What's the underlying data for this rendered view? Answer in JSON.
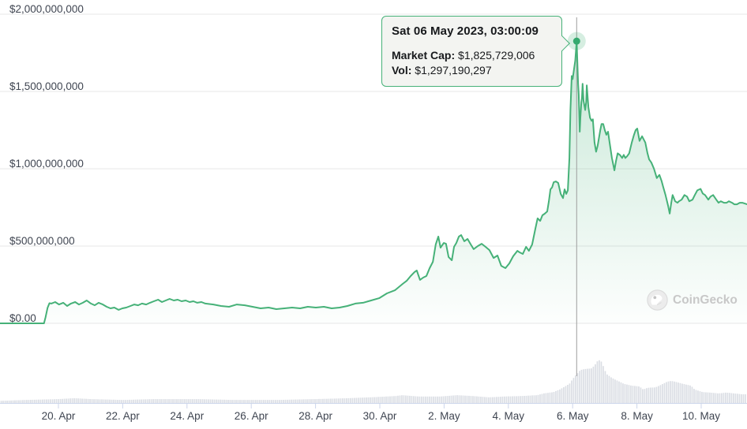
{
  "tooltip": {
    "title": "Sat 06 May 2023, 03:00:09",
    "market_cap_label": "Market Cap:",
    "market_cap_value": "$1,825,729,006",
    "vol_label": "Vol:",
    "vol_value": "$1,297,190,297"
  },
  "watermark": {
    "label": "CoinGecko",
    "icon": "gecko-logo"
  },
  "colors": {
    "accent_green": "#46b178",
    "marker_green": "#35a96e",
    "halo": "rgba(70,177,120,0.22)",
    "fill_top": "rgba(70,177,120,0.30)",
    "fill_bottom": "rgba(70,177,120,0.01)",
    "gridline": "#e7e7e7",
    "axis_line": "#ccd6eb",
    "tick": "#ccd6eb",
    "volume_bar": "#dbdee4",
    "crosshair": "#9e9e9e",
    "axis_label": "#3f4551",
    "tooltip_bg": "#f3f4f1"
  },
  "chart_data": {
    "type": "area",
    "title": "",
    "xlabel": "",
    "ylabel": "",
    "legend": "none",
    "grid": "horizontal",
    "ylim": [
      0,
      2000000000
    ],
    "y_ticks": [
      {
        "label": "$2,000,000,000",
        "value": 2000000000
      },
      {
        "label": "$1,500,000,000",
        "value": 1500000000
      },
      {
        "label": "$1,000,000,000",
        "value": 1000000000
      },
      {
        "label": "$500,000,000",
        "value": 500000000
      },
      {
        "label": "$0.00",
        "value": 0
      }
    ],
    "x_ticks": [
      {
        "label": "20. Apr",
        "t": 0
      },
      {
        "label": "22. Apr",
        "t": 2
      },
      {
        "label": "24. Apr",
        "t": 4
      },
      {
        "label": "26. Apr",
        "t": 6
      },
      {
        "label": "28. Apr",
        "t": 8
      },
      {
        "label": "30. Apr",
        "t": 10
      },
      {
        "label": "2. May",
        "t": 12
      },
      {
        "label": "4. May",
        "t": 14
      },
      {
        "label": "6. May",
        "t": 16
      },
      {
        "label": "8. May",
        "t": 18
      },
      {
        "label": "10. May",
        "t": 20
      }
    ],
    "x_unit": "days since 20 Apr 2023 00:00",
    "highlight": {
      "t": 16.125,
      "value_billion": 1.8257,
      "date": "Sat 06 May 2023, 03:00:09"
    },
    "series": [
      {
        "name": "Market Cap",
        "unit": "USD billions",
        "points": [
          [
            -1.82,
            0.0
          ],
          [
            -1.2,
            0.0
          ],
          [
            -0.6,
            0.0
          ],
          [
            -0.45,
            0.0
          ],
          [
            -0.4,
            0.04
          ],
          [
            -0.34,
            0.1
          ],
          [
            -0.28,
            0.13
          ],
          [
            -0.22,
            0.128
          ],
          [
            -0.1,
            0.138
          ],
          [
            0.02,
            0.122
          ],
          [
            0.15,
            0.133
          ],
          [
            0.27,
            0.112
          ],
          [
            0.39,
            0.128
          ],
          [
            0.52,
            0.138
          ],
          [
            0.64,
            0.122
          ],
          [
            0.76,
            0.133
          ],
          [
            0.88,
            0.148
          ],
          [
            1.01,
            0.128
          ],
          [
            1.13,
            0.117
          ],
          [
            1.25,
            0.133
          ],
          [
            1.38,
            0.122
          ],
          [
            1.5,
            0.107
          ],
          [
            1.62,
            0.097
          ],
          [
            1.74,
            0.102
          ],
          [
            1.87,
            0.087
          ],
          [
            1.99,
            0.097
          ],
          [
            2.11,
            0.102
          ],
          [
            2.24,
            0.112
          ],
          [
            2.36,
            0.122
          ],
          [
            2.48,
            0.117
          ],
          [
            2.6,
            0.128
          ],
          [
            2.73,
            0.122
          ],
          [
            2.85,
            0.133
          ],
          [
            2.97,
            0.143
          ],
          [
            3.1,
            0.153
          ],
          [
            3.22,
            0.138
          ],
          [
            3.34,
            0.148
          ],
          [
            3.46,
            0.158
          ],
          [
            3.59,
            0.148
          ],
          [
            3.71,
            0.153
          ],
          [
            3.83,
            0.143
          ],
          [
            3.96,
            0.148
          ],
          [
            4.08,
            0.138
          ],
          [
            4.2,
            0.143
          ],
          [
            4.32,
            0.133
          ],
          [
            4.45,
            0.138
          ],
          [
            4.57,
            0.128
          ],
          [
            4.82,
            0.122
          ],
          [
            5.06,
            0.112
          ],
          [
            5.31,
            0.107
          ],
          [
            5.55,
            0.122
          ],
          [
            5.8,
            0.117
          ],
          [
            6.04,
            0.107
          ],
          [
            6.29,
            0.097
          ],
          [
            6.54,
            0.102
          ],
          [
            6.78,
            0.092
          ],
          [
            7.03,
            0.097
          ],
          [
            7.27,
            0.102
          ],
          [
            7.52,
            0.097
          ],
          [
            7.76,
            0.107
          ],
          [
            8.01,
            0.102
          ],
          [
            8.26,
            0.107
          ],
          [
            8.5,
            0.097
          ],
          [
            8.75,
            0.102
          ],
          [
            8.99,
            0.112
          ],
          [
            9.24,
            0.128
          ],
          [
            9.48,
            0.133
          ],
          [
            9.73,
            0.148
          ],
          [
            9.98,
            0.163
          ],
          [
            10.22,
            0.194
          ],
          [
            10.47,
            0.214
          ],
          [
            10.71,
            0.255
          ],
          [
            10.84,
            0.276
          ],
          [
            10.96,
            0.306
          ],
          [
            11.08,
            0.332
          ],
          [
            11.15,
            0.342
          ],
          [
            11.25,
            0.281
          ],
          [
            11.35,
            0.296
          ],
          [
            11.45,
            0.306
          ],
          [
            11.55,
            0.357
          ],
          [
            11.65,
            0.398
          ],
          [
            11.74,
            0.51
          ],
          [
            11.82,
            0.561
          ],
          [
            11.89,
            0.49
          ],
          [
            11.99,
            0.52
          ],
          [
            12.06,
            0.515
          ],
          [
            12.14,
            0.429
          ],
          [
            12.24,
            0.408
          ],
          [
            12.31,
            0.495
          ],
          [
            12.38,
            0.52
          ],
          [
            12.46,
            0.561
          ],
          [
            12.53,
            0.571
          ],
          [
            12.63,
            0.531
          ],
          [
            12.73,
            0.546
          ],
          [
            12.83,
            0.51
          ],
          [
            12.92,
            0.48
          ],
          [
            13.05,
            0.5
          ],
          [
            13.17,
            0.515
          ],
          [
            13.29,
            0.495
          ],
          [
            13.41,
            0.474
          ],
          [
            13.54,
            0.423
          ],
          [
            13.66,
            0.439
          ],
          [
            13.78,
            0.372
          ],
          [
            13.91,
            0.357
          ],
          [
            14.03,
            0.388
          ],
          [
            14.15,
            0.434
          ],
          [
            14.28,
            0.469
          ],
          [
            14.35,
            0.459
          ],
          [
            14.45,
            0.449
          ],
          [
            14.55,
            0.495
          ],
          [
            14.64,
            0.469
          ],
          [
            14.74,
            0.51
          ],
          [
            14.84,
            0.612
          ],
          [
            14.91,
            0.679
          ],
          [
            14.99,
            0.663
          ],
          [
            15.06,
            0.699
          ],
          [
            15.13,
            0.709
          ],
          [
            15.21,
            0.724
          ],
          [
            15.26,
            0.79
          ],
          [
            15.31,
            0.867
          ],
          [
            15.36,
            0.88
          ],
          [
            15.41,
            0.913
          ],
          [
            15.48,
            0.918
          ],
          [
            15.55,
            0.908
          ],
          [
            15.63,
            0.837
          ],
          [
            15.7,
            0.81
          ],
          [
            15.75,
            0.867
          ],
          [
            15.8,
            0.837
          ],
          [
            15.85,
            0.86
          ],
          [
            15.9,
            1.07
          ],
          [
            15.93,
            1.38
          ],
          [
            15.97,
            1.6
          ],
          [
            16.0,
            1.58
          ],
          [
            16.04,
            1.64
          ],
          [
            16.08,
            1.7
          ],
          [
            16.125,
            1.826
          ],
          [
            16.17,
            1.55
          ],
          [
            16.19,
            1.48
          ],
          [
            16.22,
            1.24
          ],
          [
            16.24,
            1.33
          ],
          [
            16.27,
            1.43
          ],
          [
            16.29,
            1.46
          ],
          [
            16.31,
            1.55
          ],
          [
            16.34,
            1.44
          ],
          [
            16.39,
            1.38
          ],
          [
            16.42,
            1.43
          ],
          [
            16.44,
            1.54
          ],
          [
            16.49,
            1.4
          ],
          [
            16.54,
            1.33
          ],
          [
            16.59,
            1.31
          ],
          [
            16.63,
            1.32
          ],
          [
            16.68,
            1.17
          ],
          [
            16.73,
            1.11
          ],
          [
            16.78,
            1.15
          ],
          [
            16.81,
            1.19
          ],
          [
            16.86,
            1.25
          ],
          [
            16.9,
            1.29
          ],
          [
            16.95,
            1.29
          ],
          [
            17.0,
            1.25
          ],
          [
            17.05,
            1.22
          ],
          [
            17.1,
            1.24
          ],
          [
            17.15,
            1.17
          ],
          [
            17.22,
            1.07
          ],
          [
            17.3,
            0.99
          ],
          [
            17.35,
            1.05
          ],
          [
            17.4,
            1.1
          ],
          [
            17.47,
            1.09
          ],
          [
            17.54,
            1.07
          ],
          [
            17.59,
            1.09
          ],
          [
            17.64,
            1.07
          ],
          [
            17.69,
            1.08
          ],
          [
            17.76,
            1.1
          ],
          [
            17.84,
            1.17
          ],
          [
            17.91,
            1.22
          ],
          [
            17.96,
            1.25
          ],
          [
            18.01,
            1.26
          ],
          [
            18.08,
            1.18
          ],
          [
            18.16,
            1.21
          ],
          [
            18.26,
            1.17
          ],
          [
            18.33,
            1.1
          ],
          [
            18.38,
            1.06
          ],
          [
            18.45,
            1.04
          ],
          [
            18.53,
            1.0
          ],
          [
            18.62,
            0.94
          ],
          [
            18.7,
            0.96
          ],
          [
            18.77,
            0.92
          ],
          [
            18.82,
            0.88
          ],
          [
            18.89,
            0.83
          ],
          [
            18.97,
            0.76
          ],
          [
            19.02,
            0.71
          ],
          [
            19.07,
            0.78
          ],
          [
            19.11,
            0.83
          ],
          [
            19.19,
            0.79
          ],
          [
            19.26,
            0.78
          ],
          [
            19.31,
            0.79
          ],
          [
            19.39,
            0.8
          ],
          [
            19.48,
            0.83
          ],
          [
            19.56,
            0.82
          ],
          [
            19.63,
            0.79
          ],
          [
            19.73,
            0.8
          ],
          [
            19.8,
            0.83
          ],
          [
            19.88,
            0.86
          ],
          [
            19.98,
            0.87
          ],
          [
            20.05,
            0.84
          ],
          [
            20.12,
            0.83
          ],
          [
            20.22,
            0.8
          ],
          [
            20.29,
            0.82
          ],
          [
            20.37,
            0.83
          ],
          [
            20.47,
            0.8
          ],
          [
            20.54,
            0.78
          ],
          [
            20.61,
            0.79
          ],
          [
            20.71,
            0.78
          ],
          [
            20.79,
            0.78
          ],
          [
            20.86,
            0.79
          ],
          [
            20.96,
            0.78
          ],
          [
            21.03,
            0.77
          ],
          [
            21.11,
            0.77
          ],
          [
            21.2,
            0.78
          ],
          [
            21.28,
            0.78
          ],
          [
            21.43,
            0.77
          ]
        ]
      },
      {
        "name": "Volume",
        "unit": "relative (fraction of max bar)",
        "profile": [
          [
            -1.82,
            0.05
          ],
          [
            -1.0,
            0.07
          ],
          [
            0,
            0.09
          ],
          [
            0.5,
            0.11
          ],
          [
            1.0,
            0.09
          ],
          [
            2.0,
            0.07
          ],
          [
            3.0,
            0.09
          ],
          [
            4.3,
            0.09
          ],
          [
            5.5,
            0.07
          ],
          [
            6.8,
            0.07
          ],
          [
            8.0,
            0.09
          ],
          [
            9.0,
            0.11
          ],
          [
            9.7,
            0.13
          ],
          [
            10.5,
            0.16
          ],
          [
            10.7,
            0.18
          ],
          [
            11.2,
            0.15
          ],
          [
            11.9,
            0.15
          ],
          [
            12.4,
            0.18
          ],
          [
            12.9,
            0.16
          ],
          [
            13.4,
            0.13
          ],
          [
            13.9,
            0.15
          ],
          [
            14.4,
            0.16
          ],
          [
            14.9,
            0.18
          ],
          [
            15.1,
            0.22
          ],
          [
            15.4,
            0.25
          ],
          [
            15.6,
            0.31
          ],
          [
            15.9,
            0.44
          ],
          [
            16.0,
            0.55
          ],
          [
            16.1,
            0.64
          ],
          [
            16.24,
            0.76
          ],
          [
            16.36,
            0.78
          ],
          [
            16.6,
            0.8
          ],
          [
            16.73,
            0.91
          ],
          [
            16.8,
            1.0
          ],
          [
            16.9,
            0.95
          ],
          [
            17.05,
            0.67
          ],
          [
            17.22,
            0.58
          ],
          [
            17.35,
            0.53
          ],
          [
            17.6,
            0.44
          ],
          [
            17.84,
            0.4
          ],
          [
            18.08,
            0.38
          ],
          [
            18.2,
            0.31
          ],
          [
            18.33,
            0.35
          ],
          [
            18.58,
            0.36
          ],
          [
            18.7,
            0.4
          ],
          [
            18.94,
            0.49
          ],
          [
            19.07,
            0.51
          ],
          [
            19.19,
            0.49
          ],
          [
            19.44,
            0.44
          ],
          [
            19.68,
            0.4
          ],
          [
            19.8,
            0.31
          ],
          [
            20.05,
            0.25
          ],
          [
            20.29,
            0.24
          ],
          [
            20.54,
            0.22
          ],
          [
            20.79,
            0.24
          ],
          [
            21.03,
            0.22
          ],
          [
            21.28,
            0.2
          ],
          [
            21.43,
            0.2
          ]
        ]
      }
    ]
  }
}
